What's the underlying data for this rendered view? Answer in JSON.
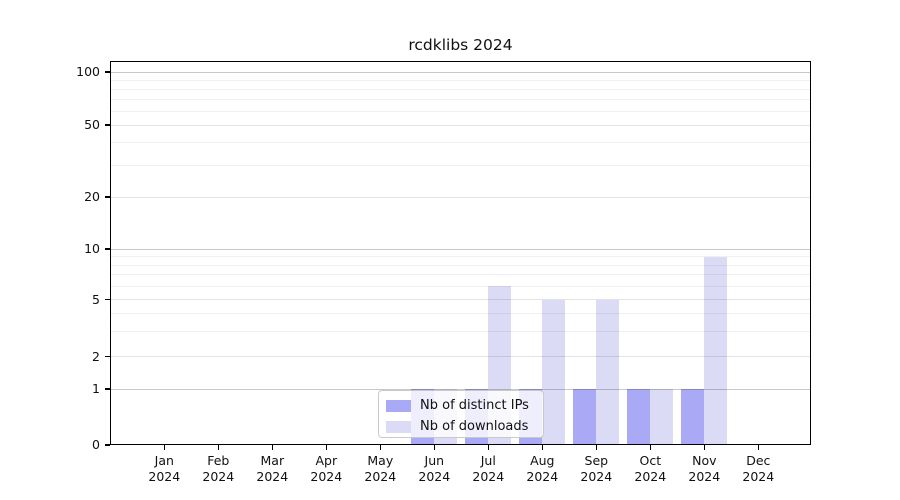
{
  "chart_data": {
    "type": "bar",
    "title": "rcdklibs 2024",
    "categories": [
      "Jan",
      "Feb",
      "Mar",
      "Apr",
      "May",
      "Jun",
      "Jul",
      "Aug",
      "Sep",
      "Oct",
      "Nov",
      "Dec"
    ],
    "year_label": "2024",
    "series": [
      {
        "name": "Nb of distinct IPs",
        "color": "#a9a9f6",
        "values": [
          0,
          0,
          0,
          0,
          0,
          1,
          1,
          1,
          1,
          1,
          1,
          0
        ]
      },
      {
        "name": "Nb of downloads",
        "color": "#dbdbf6",
        "values": [
          0,
          0,
          0,
          0,
          0,
          1,
          6,
          5,
          5,
          1,
          9,
          0
        ]
      }
    ],
    "yticks": [
      0,
      1,
      2,
      5,
      10,
      20,
      50,
      100
    ],
    "minor_gridlines": [
      3,
      4,
      6,
      7,
      8,
      9,
      30,
      40,
      60,
      70,
      80,
      90
    ],
    "ylim": [
      0,
      100
    ],
    "yscale": "log-like with linear 0-1 segment",
    "grid": "horizontal",
    "legend_position": "lower center",
    "colors": {
      "grid_major": "#c9c9c9",
      "grid_mid": "#e3e3e3",
      "grid_minor": "#efefef",
      "axis": "#000000",
      "background": "#ffffff"
    }
  }
}
